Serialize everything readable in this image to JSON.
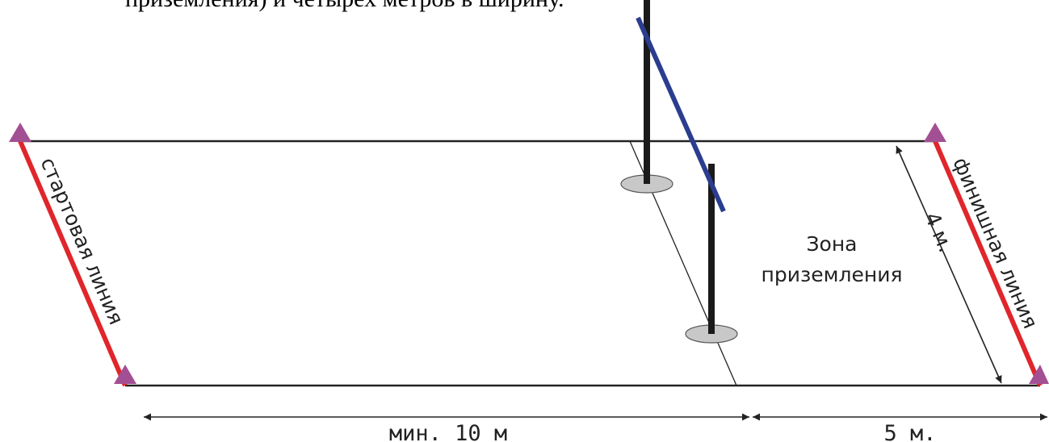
{
  "caption_fragment": "приземления) и четырех метров в ширину.",
  "labels": {
    "start_line": "стартовая линия",
    "finish_line": "финишная линия",
    "landing_zone_line1": "Зона",
    "landing_zone_line2": "приземления",
    "width": "4 м.",
    "min_distance": "мин. 10 м",
    "finish_distance": "5 м."
  },
  "colors": {
    "start_finish_line": "#e0262b",
    "markers": "#a34f93",
    "bar": "#2b3d8f",
    "poles": "#1a1a1a",
    "bases": "#c8c8c8"
  }
}
